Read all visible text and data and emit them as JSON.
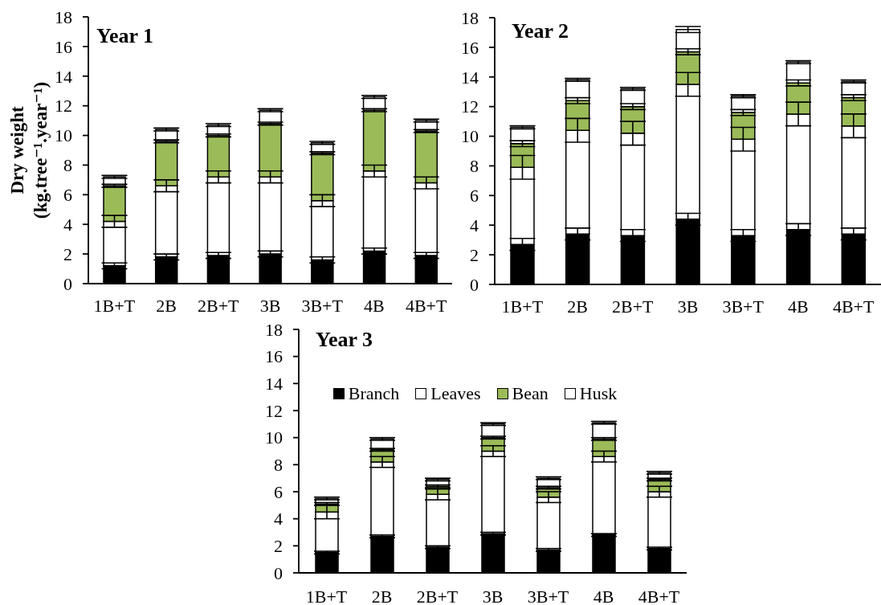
{
  "chart_data": [
    {
      "type": "bar",
      "title": "Year 1",
      "ylabel": "Dry weight\n(kg.tree⁻¹.year⁻¹)",
      "categories": [
        "1B+T",
        "2B",
        "2B+T",
        "3B",
        "3B+T",
        "4B",
        "4B+T"
      ],
      "stacked": true,
      "ylim": [
        0,
        18
      ],
      "yticks": [
        0,
        2,
        4,
        6,
        8,
        10,
        12,
        14,
        16,
        18
      ],
      "series": [
        {
          "color": "#000000",
          "values": [
            1.2,
            1.8,
            1.9,
            2.0,
            1.6,
            2.2,
            1.9
          ],
          "errors": [
            0.2,
            0.2,
            0.2,
            0.2,
            0.2,
            0.2,
            0.2
          ]
        },
        {
          "color": "#ffffff",
          "values": [
            3.0,
            4.8,
            5.3,
            5.2,
            4.0,
            5.4,
            4.9
          ],
          "errors": [
            0.4,
            0.4,
            0.4,
            0.4,
            0.4,
            0.4,
            0.4
          ]
        },
        {
          "color": "#9bbb59",
          "values": [
            2.4,
            3.0,
            2.8,
            3.6,
            3.2,
            4.1,
            3.5
          ],
          "errors": [
            0.1,
            0.1,
            0.1,
            0.1,
            0.1,
            0.1,
            0.1
          ]
        },
        {
          "color": "#ffffff",
          "values": [
            0.6,
            0.8,
            0.7,
            0.9,
            0.7,
            0.9,
            0.7
          ],
          "errors": [
            0.1,
            0.1,
            0.1,
            0.1,
            0.1,
            0.1,
            0.1
          ]
        }
      ]
    },
    {
      "type": "bar",
      "title": "Year 2",
      "categories": [
        "1B+T",
        "2B",
        "2B+T",
        "3B",
        "3B+T",
        "4B",
        "4B+T"
      ],
      "stacked": true,
      "ylim": [
        0,
        18
      ],
      "yticks": [
        0,
        2,
        4,
        6,
        8,
        10,
        12,
        14,
        16,
        18
      ],
      "series": [
        {
          "color": "#000000",
          "values": [
            2.7,
            3.4,
            3.3,
            4.4,
            3.3,
            3.7,
            3.4
          ],
          "errors": [
            0.4,
            0.4,
            0.4,
            0.4,
            0.4,
            0.4,
            0.4
          ]
        },
        {
          "color": "#ffffff",
          "values": [
            5.2,
            7.0,
            6.9,
            9.1,
            6.5,
            7.8,
            7.3
          ],
          "errors": [
            0.8,
            0.8,
            0.8,
            0.8,
            0.8,
            0.8,
            0.8
          ]
        },
        {
          "color": "#9bbb59",
          "values": [
            1.6,
            2.0,
            1.8,
            2.2,
            1.8,
            2.1,
            1.9
          ],
          "errors": [
            0.2,
            0.2,
            0.2,
            0.2,
            0.2,
            0.2,
            0.2
          ]
        },
        {
          "color": "#ffffff",
          "values": [
            1.1,
            1.4,
            1.2,
            1.5,
            1.1,
            1.4,
            1.1
          ],
          "errors": [
            0.1,
            0.1,
            0.1,
            0.2,
            0.1,
            0.1,
            0.1
          ]
        }
      ]
    },
    {
      "type": "bar",
      "title": "Year 3",
      "categories": [
        "1B+T",
        "2B",
        "2B+T",
        "3B",
        "3B+T",
        "4B",
        "4B+T"
      ],
      "stacked": true,
      "ylim": [
        0,
        18
      ],
      "yticks": [
        0,
        2,
        4,
        6,
        8,
        10,
        12,
        14,
        16,
        18
      ],
      "legend": "top",
      "series": [
        {
          "name": "Branch",
          "color": "#000000",
          "values": [
            1.5,
            2.7,
            1.9,
            2.9,
            1.7,
            2.8,
            1.8
          ],
          "errors": [
            0.1,
            0.1,
            0.1,
            0.1,
            0.1,
            0.1,
            0.1
          ]
        },
        {
          "name": "Leaves",
          "color": "#ffffff",
          "values": [
            3.0,
            5.5,
            3.9,
            6.1,
            3.9,
            5.8,
            4.2
          ],
          "errors": [
            0.5,
            0.4,
            0.4,
            0.4,
            0.4,
            0.4,
            0.4
          ]
        },
        {
          "name": "Bean",
          "color": "#9bbb59",
          "values": [
            0.6,
            0.9,
            0.6,
            1.0,
            0.7,
            1.3,
            0.9
          ],
          "errors": [
            0.1,
            0.1,
            0.1,
            0.1,
            0.1,
            0.1,
            0.1
          ]
        },
        {
          "name": "Husk",
          "color": "#ffffff",
          "values": [
            0.4,
            0.8,
            0.5,
            1.0,
            0.7,
            1.2,
            0.5
          ],
          "errors": [
            0.1,
            0.1,
            0.1,
            0.1,
            0.1,
            0.1,
            0.1
          ]
        }
      ]
    }
  ]
}
